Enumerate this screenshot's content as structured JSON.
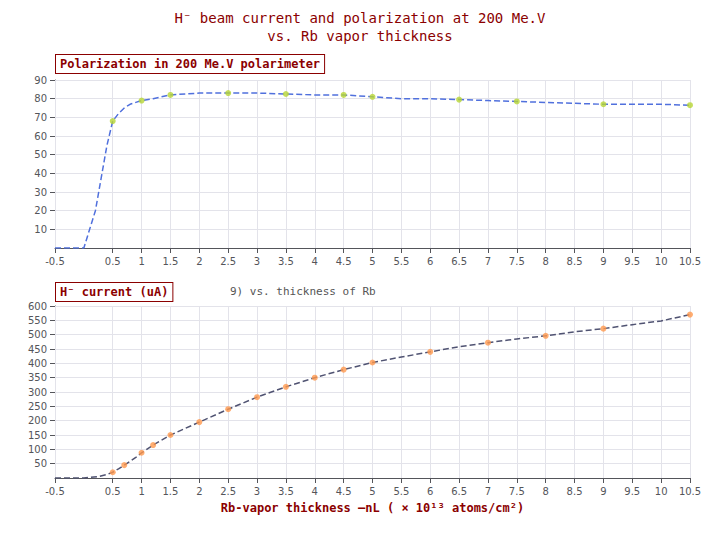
{
  "chart_data": [
    {
      "type": "line",
      "title": "H⁻ beam current and polarization at 200 Me.V",
      "subtitle": "vs. Rb vapor thickness",
      "annotations": [
        "Polarization in 200 Me.V polarimeter"
      ],
      "xlim": [
        -0.5,
        10.5
      ],
      "xticks": [
        -0.5,
        0.5,
        1,
        1.5,
        2,
        2.5,
        3,
        3.5,
        4,
        4.5,
        5,
        5.5,
        6,
        6.5,
        7,
        7.5,
        8,
        8.5,
        9,
        9.5,
        10,
        10.5
      ],
      "ylim": [
        0,
        90
      ],
      "yticks": [
        10,
        20,
        30,
        40,
        50,
        60,
        70,
        80,
        90
      ],
      "grid": true,
      "series": [
        {
          "type": "line",
          "line_style": "dashed",
          "marker": "none",
          "x": [
            -0.5,
            0.0,
            0.2,
            0.4,
            0.5,
            0.6,
            0.7,
            0.8,
            0.9,
            1.0,
            1.2,
            1.5,
            2.0,
            2.5,
            3.0,
            3.5,
            4.0,
            4.5,
            5.0,
            5.5,
            6.0,
            6.5,
            7.0,
            7.5,
            8.0,
            8.5,
            9.0,
            9.5,
            10.0,
            10.5
          ],
          "values": [
            0,
            0,
            20,
            55,
            68,
            72,
            75,
            77,
            78,
            79,
            80,
            82,
            83,
            83,
            83,
            82.5,
            82,
            82,
            81,
            80,
            80,
            79.5,
            79,
            78.5,
            78,
            77.5,
            77,
            77,
            77,
            76.5
          ]
        },
        {
          "type": "scatter",
          "marker": "circle",
          "x": [
            0.5,
            1.0,
            1.5,
            2.5,
            3.5,
            4.5,
            5.0,
            6.5,
            7.5,
            9.0,
            10.5
          ],
          "values": [
            68,
            79,
            82,
            83,
            82.5,
            82,
            81,
            79.5,
            78.5,
            77,
            76.5
          ]
        }
      ]
    },
    {
      "type": "line",
      "annotations": [
        "H⁻ current (uA)",
        "9) vs. thickness of Rb"
      ],
      "xlabel": "Rb-vapor thickness –nL ( × 10¹³ atoms/cm²)",
      "xlim": [
        -0.5,
        10.5
      ],
      "xticks": [
        -0.5,
        0.5,
        1,
        1.5,
        2,
        2.5,
        3,
        3.5,
        4,
        4.5,
        5,
        5.5,
        6,
        6.5,
        7,
        7.5,
        8,
        8.5,
        9,
        9.5,
        10,
        10.5
      ],
      "ylim": [
        0,
        600
      ],
      "yticks": [
        50,
        100,
        150,
        200,
        250,
        300,
        350,
        400,
        450,
        500,
        550,
        600
      ],
      "grid": true,
      "series": [
        {
          "type": "line",
          "line_style": "dashed",
          "marker": "none",
          "x": [
            -0.5,
            0.0,
            0.25,
            0.4,
            0.5,
            0.6,
            0.7,
            0.8,
            0.9,
            1.0,
            1.2,
            1.5,
            2.0,
            2.5,
            3.0,
            3.5,
            4.0,
            4.5,
            5.0,
            5.5,
            6.0,
            6.5,
            7.0,
            7.5,
            8.0,
            8.5,
            9.0,
            9.5,
            10.0,
            10.5
          ],
          "values": [
            0,
            0,
            5,
            12,
            20,
            32,
            45,
            58,
            72,
            88,
            115,
            150,
            195,
            240,
            282,
            318,
            350,
            378,
            403,
            422,
            440,
            458,
            472,
            485,
            496,
            510,
            521,
            535,
            548,
            570
          ]
        },
        {
          "type": "scatter",
          "marker": "circle",
          "x": [
            0.5,
            0.7,
            1.0,
            1.2,
            1.5,
            2.0,
            2.5,
            3.0,
            3.5,
            4.0,
            4.5,
            5.0,
            6.0,
            7.0,
            8.0,
            9.0,
            10.5
          ],
          "values": [
            20,
            45,
            88,
            115,
            150,
            195,
            240,
            282,
            318,
            350,
            378,
            403,
            440,
            472,
            496,
            521,
            570
          ]
        }
      ]
    }
  ]
}
